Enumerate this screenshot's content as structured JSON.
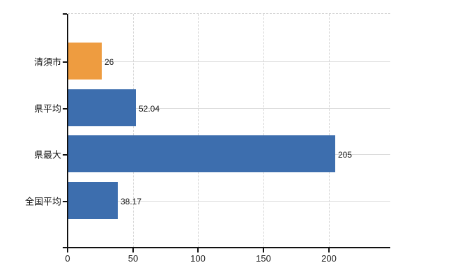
{
  "chart_data": {
    "type": "bar",
    "orientation": "horizontal",
    "title": "",
    "xlabel": "",
    "ylabel": "",
    "categories": [
      "清須市",
      "県平均",
      "県最大",
      "全国平均"
    ],
    "values": [
      26,
      52.04,
      205,
      38.17
    ],
    "value_labels": [
      "26",
      "52.04",
      "205",
      "38.17"
    ],
    "bar_colors": [
      "#EE9C40",
      "#3D6EAE",
      "#3D6EAE",
      "#3D6EAE"
    ],
    "x_ticks": [
      0,
      50,
      100,
      150,
      200
    ],
    "x_tick_labels": [
      "0",
      "50",
      "100",
      "150",
      "200"
    ],
    "xlim": [
      0,
      247
    ],
    "grid": true,
    "legend": false,
    "colors": {
      "bar_orange": "#EE9C40",
      "bar_blue": "#3D6EAE",
      "axis": "#111111",
      "grid_horizontal": "#DCDCDC",
      "grid_vertical": "#D6D6D6",
      "plot_top_border": "#CFCFCF",
      "label_text": "#1A1A1A",
      "background": "#FFFFFF"
    }
  }
}
